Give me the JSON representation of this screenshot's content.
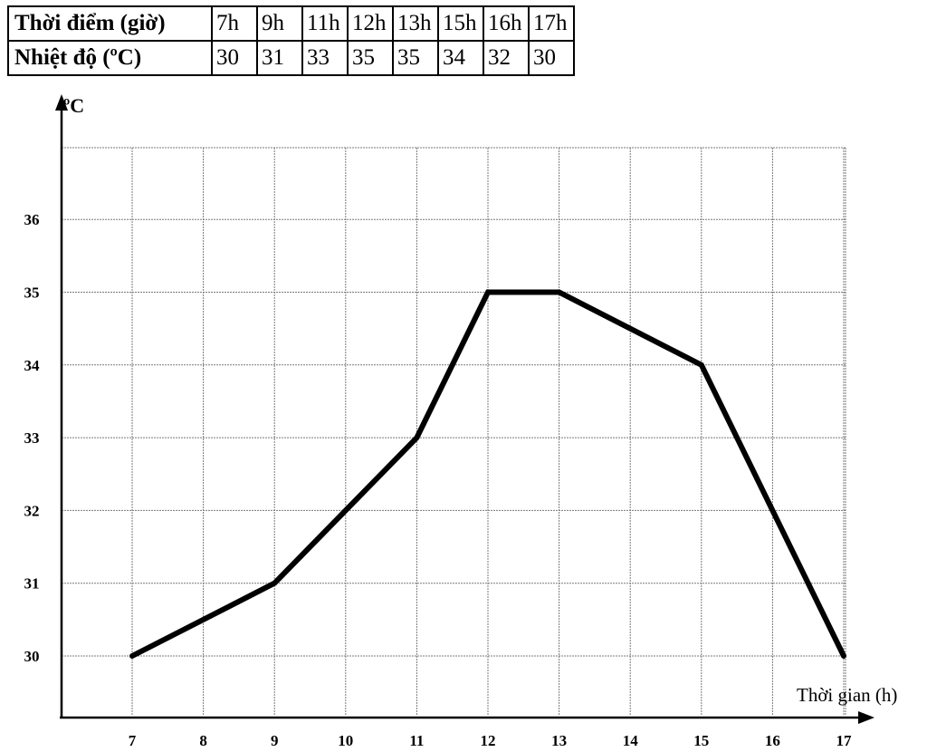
{
  "table": {
    "row_headers": [
      "Thời điểm (giờ)",
      "Nhiệt độ (ºC)"
    ],
    "times": [
      "7h",
      "9h",
      "11h",
      "12h",
      "13h",
      "15h",
      "16h",
      "17h"
    ],
    "temps": [
      "30",
      "31",
      "33",
      "35",
      "35",
      "34",
      "32",
      "30"
    ]
  },
  "chart_data": {
    "type": "line",
    "ylabel": "ºC",
    "xlabel": "Thời gian (h)",
    "x_ticks": [
      "7",
      "8",
      "9",
      "10",
      "11",
      "12",
      "13",
      "14",
      "15",
      "16",
      "17"
    ],
    "y_ticks": [
      "30",
      "31",
      "32",
      "33",
      "34",
      "35",
      "36"
    ],
    "x": [
      7,
      9,
      11,
      12,
      13,
      15,
      16,
      17
    ],
    "y": [
      30,
      31,
      33,
      35,
      35,
      34,
      32,
      30
    ],
    "grid": true,
    "line_color": "#000000"
  }
}
